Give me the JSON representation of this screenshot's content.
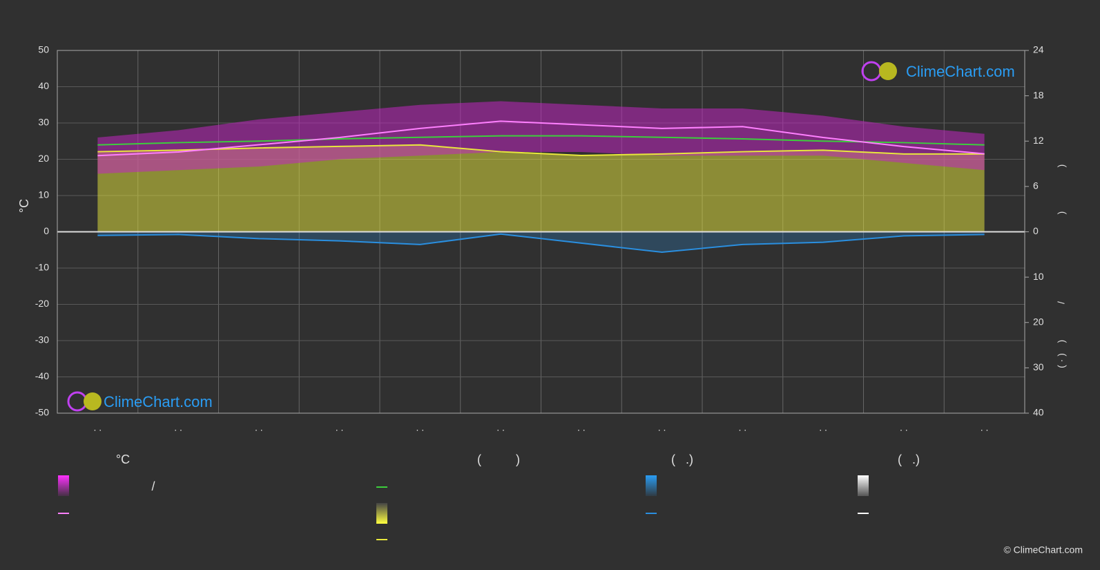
{
  "chart_data": {
    "type": "climate",
    "y_label": "°C",
    "categories": [
      ". .",
      ". .",
      ". .",
      ". .",
      ". .",
      ". .",
      ". .",
      ". .",
      ". .",
      ". .",
      ". .",
      ". ."
    ],
    "ylim": [
      -50,
      50
    ],
    "yticks": [
      -50,
      -40,
      -30,
      -20,
      -10,
      0,
      10,
      20,
      30,
      40,
      50
    ],
    "y2lim": [
      0,
      24
    ],
    "y2ticks": [
      0,
      6,
      12,
      18,
      24
    ],
    "y3lim": [
      0,
      40
    ],
    "y3ticks": [
      10,
      20,
      30,
      40
    ],
    "y2_label_parts": [
      ")",
      ")"
    ],
    "y3_label_parts": [
      "/",
      ")",
      "( · )"
    ],
    "grid": true,
    "temp_range": {
      "color": "#c026c0",
      "high": [
        26,
        28,
        31,
        33,
        35,
        36,
        35,
        34,
        34,
        32,
        29,
        27
      ],
      "low": [
        16,
        17,
        18,
        20,
        21,
        22,
        22,
        21,
        21,
        21,
        19,
        17
      ]
    },
    "temp_max": {
      "color": "#ff80ff",
      "values": [
        21,
        22,
        24,
        26,
        28.5,
        30.5,
        29.5,
        28.5,
        29,
        26,
        23.5,
        21.5
      ]
    },
    "daylight": {
      "color": "#3ccf3c",
      "axis": "y2",
      "values": [
        11.5,
        11.8,
        12.0,
        12.3,
        12.5,
        12.7,
        12.7,
        12.5,
        12.3,
        12.0,
        11.8,
        11.5
      ]
    },
    "sunshine": {
      "color": "#e8e83c",
      "axis": "y2",
      "values": [
        10.6,
        10.8,
        11.1,
        11.3,
        11.5,
        10.6,
        10.1,
        10.3,
        10.6,
        10.8,
        10.3,
        10.3
      ]
    },
    "precipitation": {
      "color": "#2a8fe0",
      "axis": "y3",
      "values": [
        0.8,
        0.6,
        1.5,
        2.0,
        2.8,
        0.5,
        2.5,
        4.5,
        2.8,
        2.3,
        0.9,
        0.6
      ]
    },
    "legend": {
      "headers": [
        "°C",
        "(          )",
        "(   .)",
        "(   .)"
      ],
      "separator": "/"
    },
    "logo_text": "ClimeChart.com",
    "copyright": "© ClimeChart.com"
  }
}
